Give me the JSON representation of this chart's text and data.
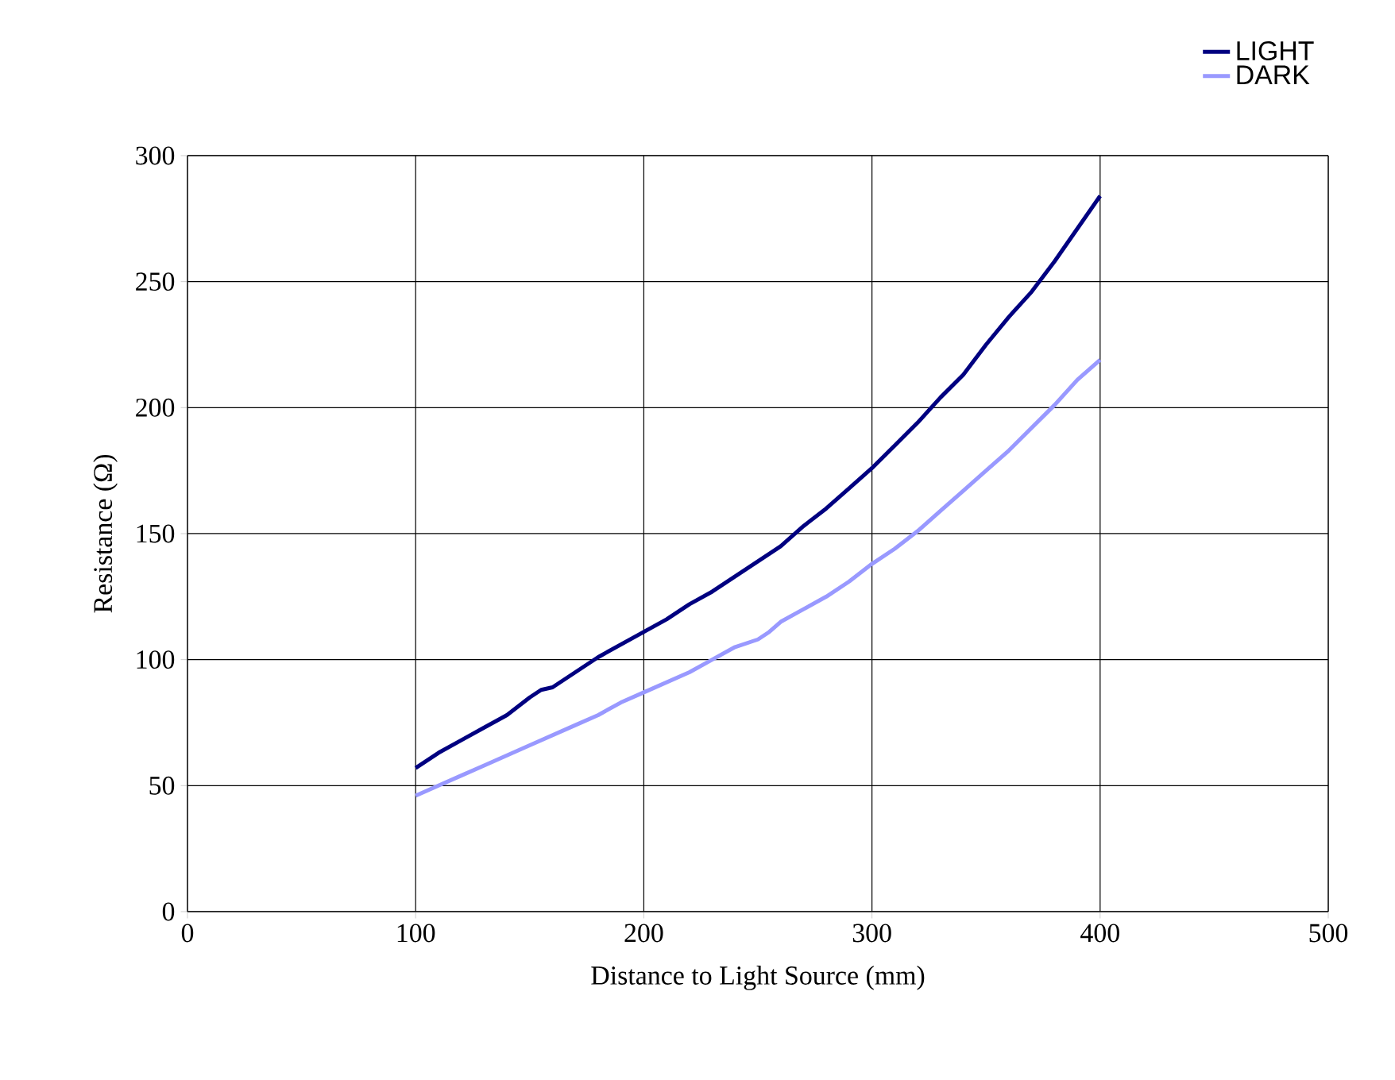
{
  "chart_data": {
    "type": "line",
    "xlabel": "Distance to Light Source (mm)",
    "ylabel": "Resistance (Ω)",
    "xlim": [
      0,
      500
    ],
    "xticks": [
      0,
      100,
      200,
      300,
      400,
      500
    ],
    "ylim": [
      0,
      300
    ],
    "yticks": [
      0,
      50,
      100,
      150,
      200,
      250,
      300
    ],
    "grid": true,
    "legend": "top right",
    "marker": "none",
    "line_style": "solid",
    "series": [
      {
        "name": "LIGHT",
        "color": "#000080",
        "x": [
          100,
          110,
          120,
          130,
          140,
          150,
          155,
          160,
          170,
          180,
          190,
          200,
          210,
          220,
          230,
          240,
          250,
          260,
          270,
          280,
          290,
          300,
          310,
          320,
          330,
          340,
          350,
          360,
          370,
          380,
          390,
          400
        ],
        "values": [
          57,
          63,
          68,
          73,
          78,
          85,
          88,
          89,
          95,
          101,
          106,
          111,
          116,
          122,
          127,
          133,
          139,
          145,
          153,
          160,
          168,
          176,
          185,
          194,
          204,
          213,
          225,
          236,
          246,
          258,
          271,
          284
        ]
      },
      {
        "name": "DARK",
        "color": "#9999ff",
        "x": [
          100,
          110,
          120,
          130,
          140,
          150,
          160,
          170,
          180,
          190,
          200,
          210,
          220,
          230,
          240,
          250,
          255,
          260,
          270,
          280,
          290,
          300,
          310,
          320,
          330,
          340,
          350,
          360,
          370,
          380,
          390,
          400
        ],
        "values": [
          46,
          50,
          54,
          58,
          62,
          66,
          70,
          74,
          78,
          83,
          87,
          91,
          95,
          100,
          105,
          108,
          111,
          115,
          120,
          125,
          131,
          138,
          144,
          151,
          159,
          167,
          175,
          183,
          192,
          201,
          211,
          219
        ]
      }
    ]
  }
}
